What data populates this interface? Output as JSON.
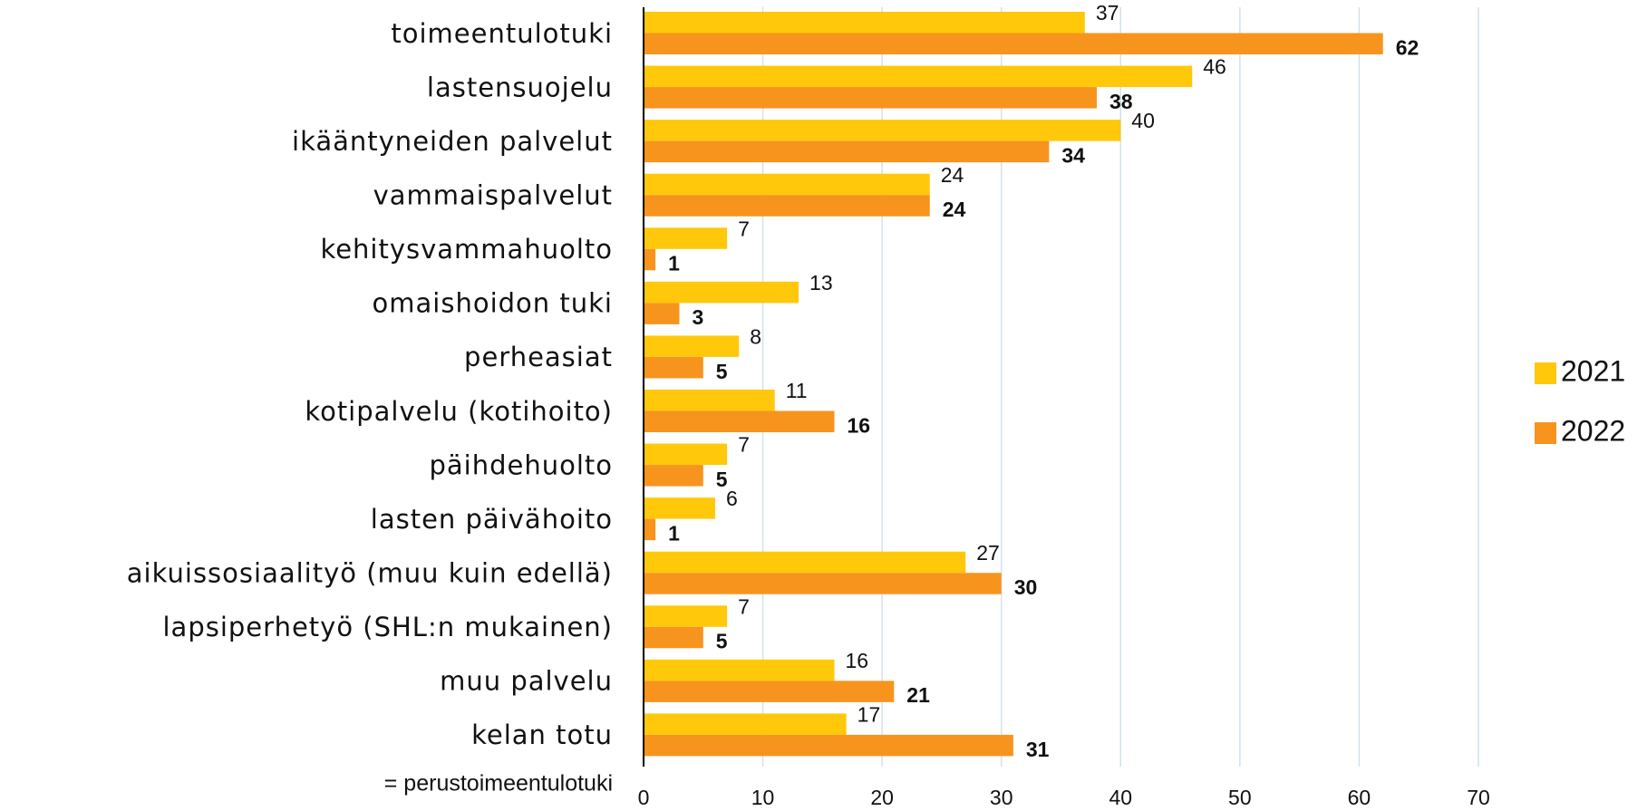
{
  "chart_data": {
    "type": "bar",
    "orientation": "horizontal",
    "categories": [
      "toimeentulotuki",
      "lastensuojelu",
      "ikääntyneiden palvelut",
      "vammaispalvelut",
      "kehitysvammahuolto",
      "omaishoidon tuki",
      "perheasiat",
      "kotipalvelu (kotihoito)",
      "päihdehuolto",
      "lasten päivähoito",
      "aikuissosiaalityö (muu kuin edellä)",
      "lapsiperhetyö (SHL:n mukainen)",
      "muu palvelu",
      "kelan totu"
    ],
    "category_note": "= perustoimeentulotuki",
    "series": [
      {
        "name": "2021",
        "color": "#ffc80a",
        "values": [
          37,
          46,
          40,
          24,
          7,
          13,
          8,
          11,
          7,
          6,
          27,
          7,
          16,
          17
        ]
      },
      {
        "name": "2022",
        "color": "#f7941e",
        "values": [
          62,
          38,
          34,
          24,
          1,
          3,
          5,
          16,
          5,
          1,
          30,
          5,
          21,
          31
        ]
      }
    ],
    "xlim": [
      0,
      70
    ],
    "xticks": [
      0,
      10,
      20,
      30,
      40,
      50,
      60,
      70
    ],
    "grid": true,
    "legend": "right"
  }
}
